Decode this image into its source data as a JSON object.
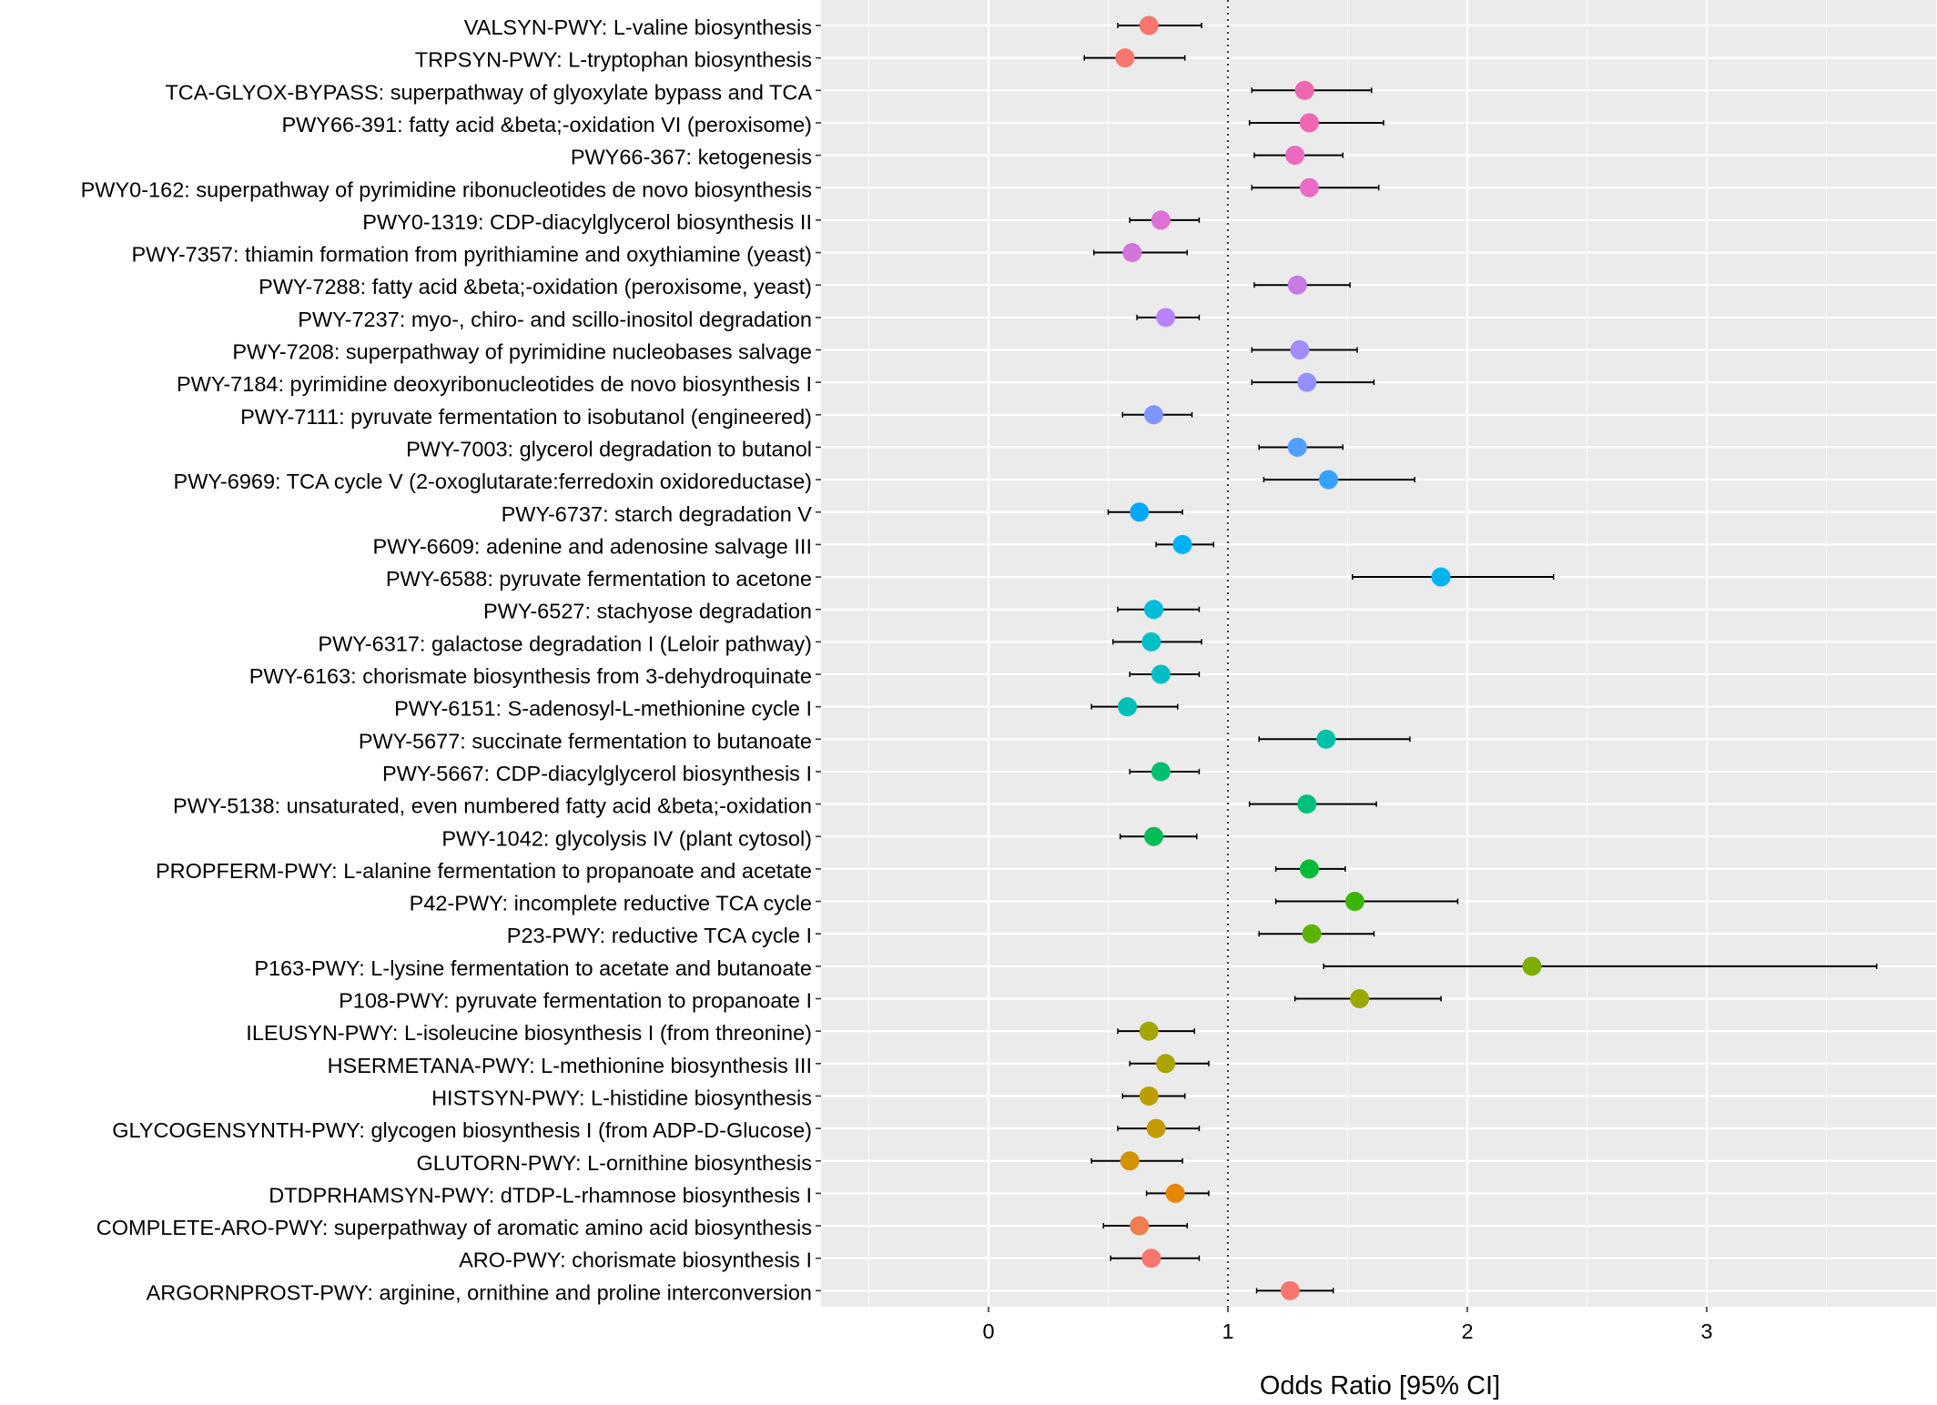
{
  "chart_data": {
    "type": "forest",
    "xlabel": "Odds Ratio [95% CI]",
    "ylabel": "",
    "xlim": [
      -0.7,
      3.95
    ],
    "x_ticks": [
      0,
      1,
      2,
      3
    ],
    "reference_line": 1,
    "grid": true,
    "legend": "none",
    "rows": [
      {
        "label": "VALSYN-PWY: L-valine biosynthesis",
        "or": 0.67,
        "lo": 0.54,
        "hi": 0.89,
        "color": "#F8766D"
      },
      {
        "label": "TRPSYN-PWY: L-tryptophan biosynthesis",
        "or": 0.57,
        "lo": 0.4,
        "hi": 0.82,
        "color": "#F8766D"
      },
      {
        "label": "TCA-GLYOX-BYPASS: superpathway of glyoxylate bypass and TCA",
        "or": 1.32,
        "lo": 1.1,
        "hi": 1.6,
        "color": "#F066B1"
      },
      {
        "label": "PWY66-391: fatty acid &beta;-oxidation VI (peroxisome)",
        "or": 1.34,
        "lo": 1.09,
        "hi": 1.65,
        "color": "#F066B1"
      },
      {
        "label": "PWY66-367: ketogenesis",
        "or": 1.28,
        "lo": 1.11,
        "hi": 1.48,
        "color": "#EC69C0"
      },
      {
        "label": "PWY0-162: superpathway of pyrimidine ribonucleotides de novo biosynthesis",
        "or": 1.34,
        "lo": 1.1,
        "hi": 1.63,
        "color": "#E96BC6"
      },
      {
        "label": "PWY0-1319: CDP-diacylglycerol biosynthesis II",
        "or": 0.72,
        "lo": 0.59,
        "hi": 0.88,
        "color": "#DE71D5"
      },
      {
        "label": "PWY-7357: thiamin formation from pyrithiamine and oxythiamine (yeast)",
        "or": 0.6,
        "lo": 0.44,
        "hi": 0.83,
        "color": "#D573DC"
      },
      {
        "label": "PWY-7288: fatty acid &beta;-oxidation (peroxisome, yeast)",
        "or": 1.29,
        "lo": 1.11,
        "hi": 1.51,
        "color": "#C67BE4"
      },
      {
        "label": "PWY-7237: myo-, chiro- and scillo-inositol degradation",
        "or": 0.74,
        "lo": 0.62,
        "hi": 0.88,
        "color": "#B983FF"
      },
      {
        "label": "PWY-7208: superpathway of pyrimidine nucleobases salvage",
        "or": 1.3,
        "lo": 1.1,
        "hi": 1.54,
        "color": "#A38CF8"
      },
      {
        "label": "PWY-7184: pyrimidine deoxyribonucleotides de novo biosynthesis I",
        "or": 1.33,
        "lo": 1.1,
        "hi": 1.61,
        "color": "#9590FF"
      },
      {
        "label": "PWY-7111: pyruvate fermentation to isobutanol (engineered)",
        "or": 0.69,
        "lo": 0.56,
        "hi": 0.85,
        "color": "#7F96FF"
      },
      {
        "label": "PWY-7003: glycerol degradation to butanol",
        "or": 1.29,
        "lo": 1.13,
        "hi": 1.48,
        "color": "#529EFF"
      },
      {
        "label": "PWY-6969: TCA cycle V (2-oxoglutarate:ferredoxin oxidoreductase)",
        "or": 1.42,
        "lo": 1.15,
        "hi": 1.78,
        "color": "#35A2FF"
      },
      {
        "label": "PWY-6737: starch degradation V",
        "or": 0.63,
        "lo": 0.5,
        "hi": 0.81,
        "color": "#00A9FF"
      },
      {
        "label": "PWY-6609: adenine and adenosine salvage III",
        "or": 0.81,
        "lo": 0.7,
        "hi": 0.94,
        "color": "#00B0F6"
      },
      {
        "label": "PWY-6588: pyruvate fermentation to acetone",
        "or": 1.89,
        "lo": 1.52,
        "hi": 2.36,
        "color": "#00B4EF"
      },
      {
        "label": "PWY-6527: stachyose degradation",
        "or": 0.69,
        "lo": 0.54,
        "hi": 0.88,
        "color": "#00BCD8"
      },
      {
        "label": "PWY-6317: galactose degradation I (Leloir pathway)",
        "or": 0.68,
        "lo": 0.52,
        "hi": 0.89,
        "color": "#00BFC4"
      },
      {
        "label": "PWY-6163: chorismate biosynthesis from 3-dehydroquinate",
        "or": 0.72,
        "lo": 0.59,
        "hi": 0.88,
        "color": "#00BFC4"
      },
      {
        "label": "PWY-6151: S-adenosyl-L-methionine cycle I",
        "or": 0.58,
        "lo": 0.43,
        "hi": 0.79,
        "color": "#00C0B8"
      },
      {
        "label": "PWY-5677: succinate fermentation to butanoate",
        "or": 1.41,
        "lo": 1.13,
        "hi": 1.76,
        "color": "#00C1A7"
      },
      {
        "label": "PWY-5667: CDP-diacylglycerol biosynthesis I",
        "or": 0.72,
        "lo": 0.59,
        "hi": 0.88,
        "color": "#00BE70"
      },
      {
        "label": "PWY-5138: unsaturated, even numbered fatty acid &beta;-oxidation",
        "or": 1.33,
        "lo": 1.09,
        "hi": 1.62,
        "color": "#00BF7D"
      },
      {
        "label": "PWY-1042: glycolysis IV (plant cytosol)",
        "or": 0.69,
        "lo": 0.55,
        "hi": 0.87,
        "color": "#00BC59"
      },
      {
        "label": "PROPFERM-PWY: L-alanine fermentation to propanoate and acetate",
        "or": 1.34,
        "lo": 1.2,
        "hi": 1.49,
        "color": "#00BA38"
      },
      {
        "label": "P42-PWY: incomplete reductive TCA cycle",
        "or": 1.53,
        "lo": 1.2,
        "hi": 1.96,
        "color": "#39B600"
      },
      {
        "label": "P23-PWY: reductive TCA cycle I",
        "or": 1.35,
        "lo": 1.13,
        "hi": 1.61,
        "color": "#5BB300"
      },
      {
        "label": "P163-PWY: L-lysine fermentation to acetate and butanoate",
        "or": 2.27,
        "lo": 1.4,
        "hi": 3.71,
        "color": "#7CAE00"
      },
      {
        "label": "P108-PWY: pyruvate fermentation to propanoate I",
        "or": 1.55,
        "lo": 1.28,
        "hi": 1.89,
        "color": "#99A800"
      },
      {
        "label": "ILEUSYN-PWY: L-isoleucine biosynthesis I (from threonine)",
        "or": 0.67,
        "lo": 0.54,
        "hi": 0.86,
        "color": "#A3A500"
      },
      {
        "label": "HSERMETANA-PWY: L-methionine biosynthesis III",
        "or": 0.74,
        "lo": 0.59,
        "hi": 0.92,
        "color": "#ABA300"
      },
      {
        "label": "HISTSYN-PWY: L-histidine biosynthesis",
        "or": 0.67,
        "lo": 0.56,
        "hi": 0.82,
        "color": "#BB9D00"
      },
      {
        "label": "GLYCOGENSYNTH-PWY: glycogen biosynthesis I (from ADP-D-Glucose)",
        "or": 0.7,
        "lo": 0.54,
        "hi": 0.88,
        "color": "#C49A00"
      },
      {
        "label": "GLUTORN-PWY: L-ornithine biosynthesis",
        "or": 0.59,
        "lo": 0.43,
        "hi": 0.81,
        "color": "#D39200"
      },
      {
        "label": "DTDPRHAMSYN-PWY: dTDP-L-rhamnose biosynthesis I",
        "or": 0.78,
        "lo": 0.66,
        "hi": 0.92,
        "color": "#E58700"
      },
      {
        "label": "COMPLETE-ARO-PWY: superpathway of aromatic amino acid biosynthesis",
        "or": 0.63,
        "lo": 0.48,
        "hi": 0.83,
        "color": "#F07E4E"
      },
      {
        "label": "ARO-PWY: chorismate biosynthesis I",
        "or": 0.68,
        "lo": 0.51,
        "hi": 0.88,
        "color": "#F8766D"
      },
      {
        "label": "ARGORNPROST-PWY: arginine, ornithine and proline interconversion",
        "or": 1.26,
        "lo": 1.12,
        "hi": 1.44,
        "color": "#F8766D"
      }
    ]
  }
}
